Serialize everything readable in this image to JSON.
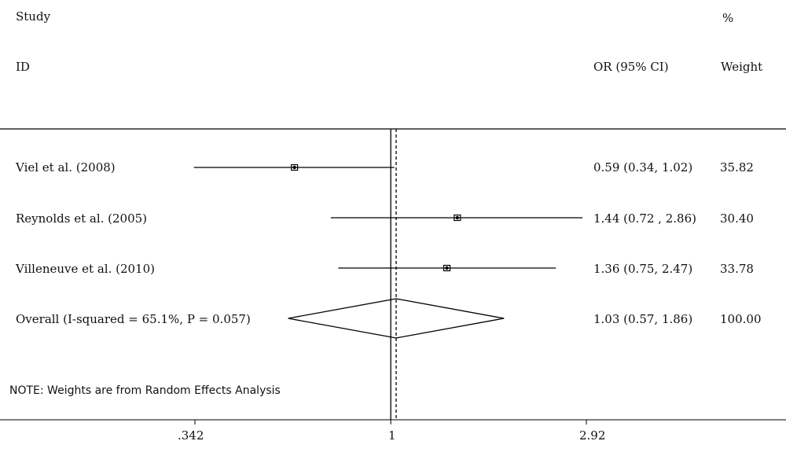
{
  "header": {
    "study_label": "Study",
    "id_label": "ID",
    "ci_label": "OR (95% CI)",
    "weight_pct_label": "%",
    "weight_label": "Weight"
  },
  "note": "NOTE: Weights are from Random Effects Analysis",
  "chart_data": {
    "type": "forest",
    "scale": "log",
    "xlim": [
      0.342,
      2.92
    ],
    "xticks": [
      {
        "value": 0.342,
        "label": ".342"
      },
      {
        "value": 1,
        "label": "1"
      },
      {
        "value": 2.92,
        "label": "2.92"
      }
    ],
    "null_value": 1,
    "overall_value": 1.03,
    "studies": [
      {
        "name": "Viel et al. (2008)",
        "or": 0.59,
        "lower": 0.34,
        "upper": 1.02,
        "ci_text": "0.59 (0.34, 1.02)",
        "weight": "35.82"
      },
      {
        "name": "Reynolds et al. (2005)",
        "or": 1.44,
        "lower": 0.72,
        "upper": 2.86,
        "ci_text": "1.44 (0.72 , 2.86)",
        "weight": "30.40"
      },
      {
        "name": "Villeneuve et al. (2010)",
        "or": 1.36,
        "lower": 0.75,
        "upper": 2.47,
        "ci_text": "1.36 (0.75, 2.47)",
        "weight": "33.78"
      }
    ],
    "overall": {
      "name": "Overall (I-squared = 65.1%, P = 0.057)",
      "or": 1.03,
      "lower": 0.57,
      "upper": 1.86,
      "ci_text": "1.03 (0.57, 1.86)",
      "weight": "100.00"
    }
  }
}
